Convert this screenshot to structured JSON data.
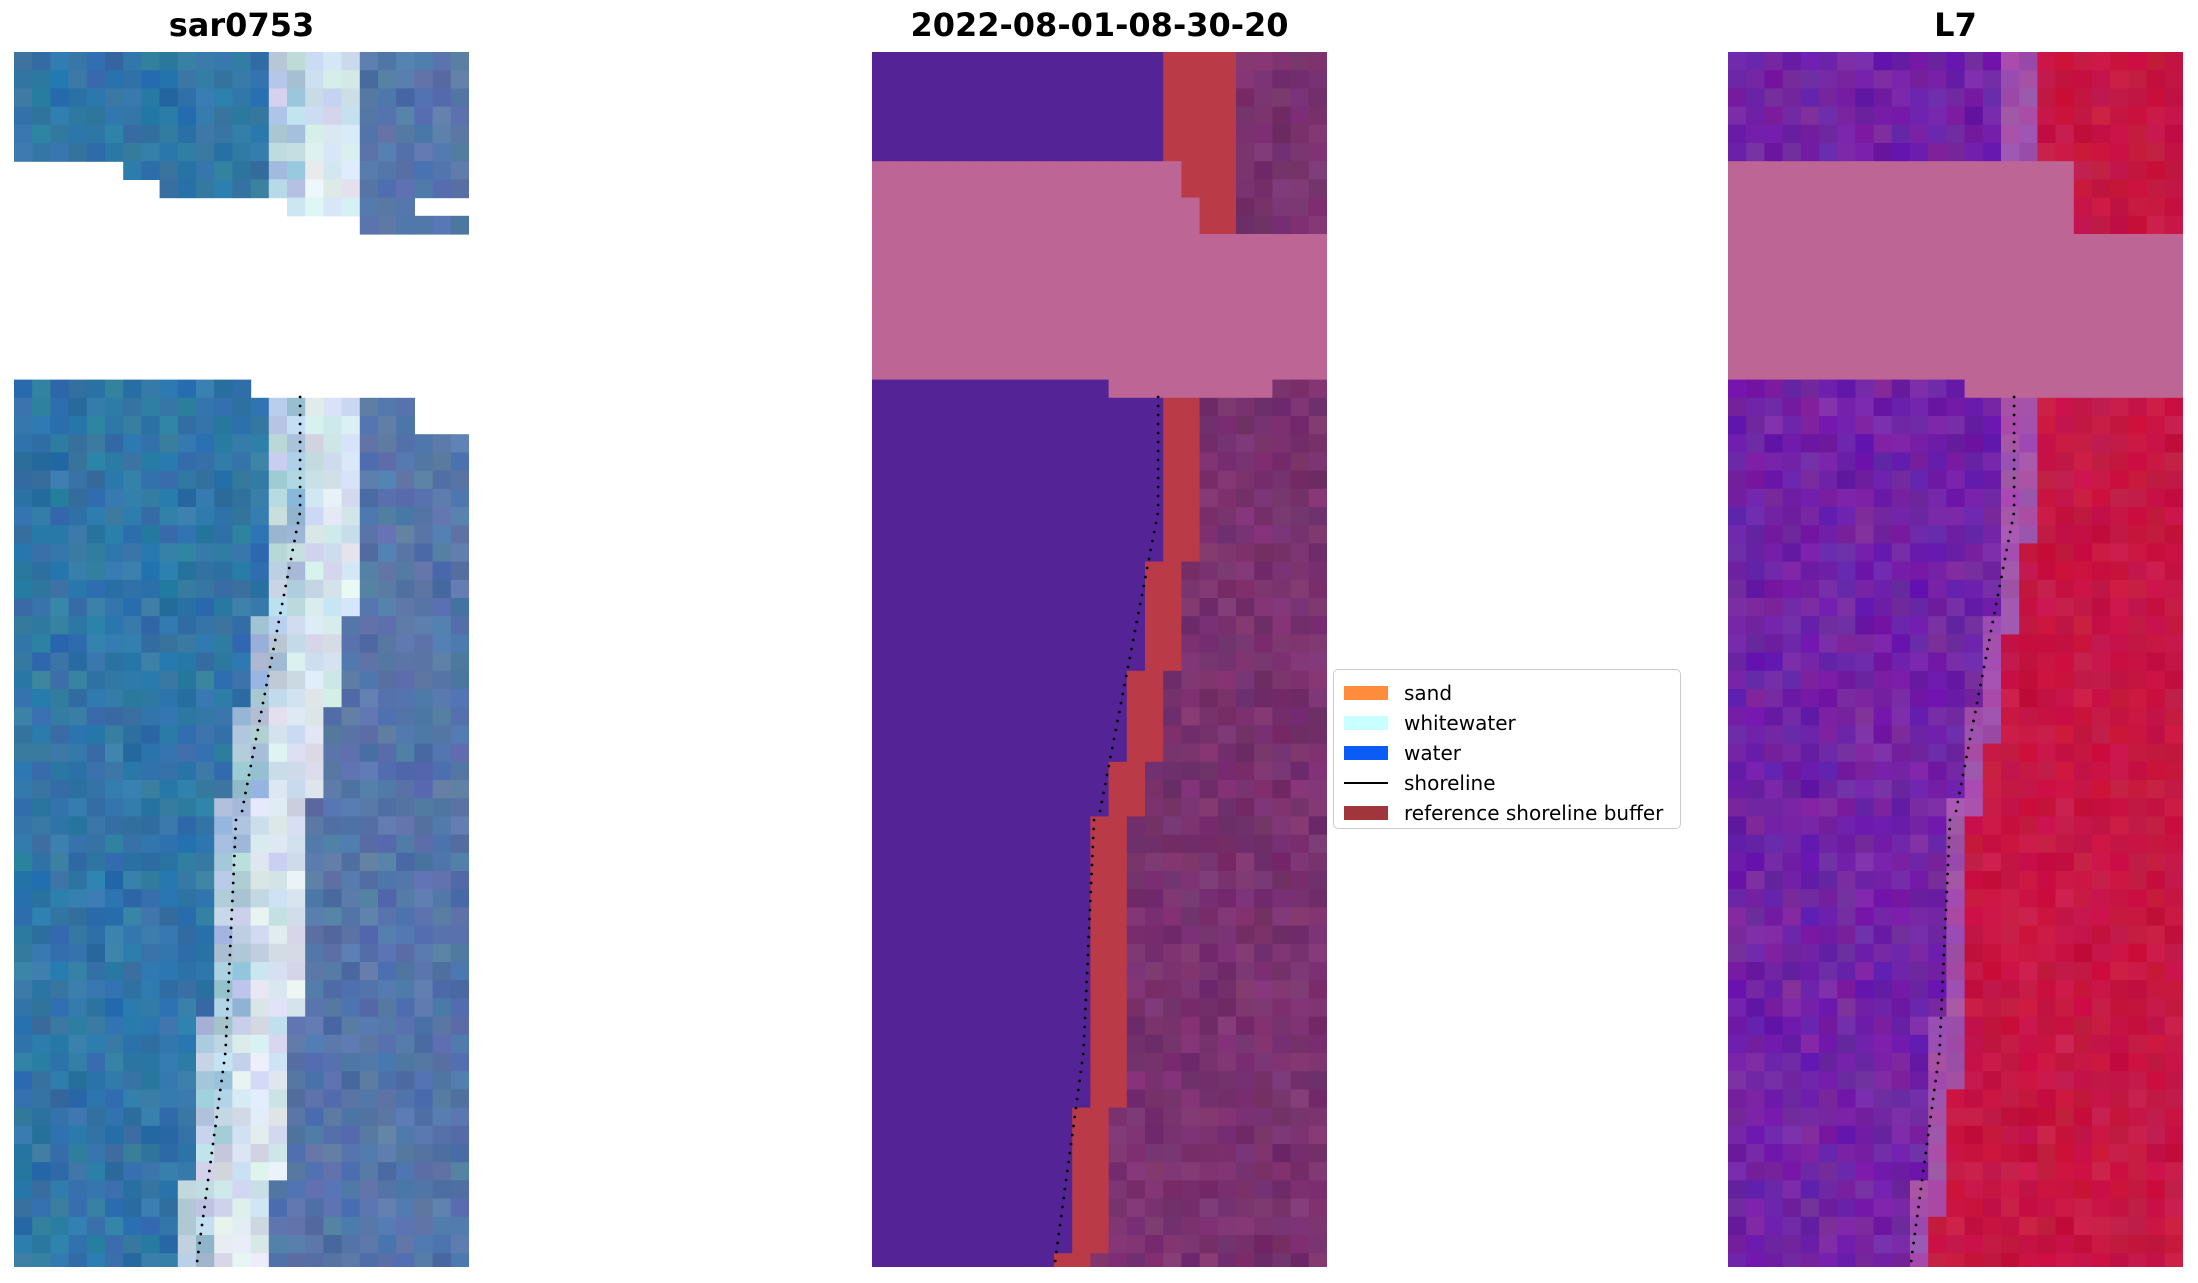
{
  "panels": [
    {
      "title": "sar0753"
    },
    {
      "title": "2022-08-01-08-30-20"
    },
    {
      "title": "L7"
    }
  ],
  "legend": {
    "items": [
      {
        "label": "sand",
        "color": "#ff8c3d",
        "kind": "patch"
      },
      {
        "label": "whitewater",
        "color": "#c8ffff",
        "kind": "patch"
      },
      {
        "label": "water",
        "color": "#0a5cf5",
        "kind": "patch"
      },
      {
        "label": "shoreline",
        "color": "#000000",
        "kind": "line"
      },
      {
        "label": "reference shoreline buffer",
        "color": "#a0353c",
        "kind": "patch"
      }
    ]
  },
  "colors": {
    "classified_water": "#542496",
    "buffer": "#bb3a48",
    "cloud_mask": "#bd6695",
    "land_dark": "#6e2a66",
    "land_mid": "#8a3d7c",
    "rgb_water": "#2b6fa5",
    "rgb_white": "#e6f0f5",
    "rgb_land": "#4e6ea6",
    "ndwi_purple": "#7b2aa3",
    "ndwi_red": "#c6103c"
  }
}
